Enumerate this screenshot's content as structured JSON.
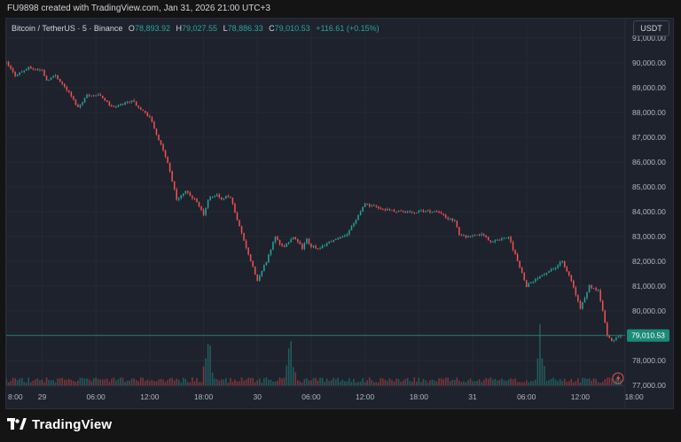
{
  "topbar": {
    "credit": "FU9898 created with TradingView.com, Jan 31, 2026 21:00 UTC+3"
  },
  "legend": {
    "symbol": "Bitcoin / TetherUS · 5 · Binance",
    "open_label": "O",
    "open": "78,893.92",
    "high_label": "H",
    "high": "79,027.55",
    "low_label": "L",
    "low": "78,886.33",
    "close_label": "C",
    "close": "79,010.53",
    "change": "+116.61 (+0.15%)"
  },
  "currency_button": "USDT",
  "branding": {
    "name": "TradingView"
  },
  "colors": {
    "background": "#1e222d",
    "up": "#26a69a",
    "down": "#ef5350",
    "text": "#d1d4dc",
    "last_price_label": "#1b8a7a"
  },
  "chart_data": {
    "type": "candlestick",
    "symbol": "Bitcoin / TetherUS",
    "interval": "5",
    "exchange": "Binance",
    "ylim": [
      77000,
      91500
    ],
    "yticks": [
      "91,000.00",
      "90,000.00",
      "89,000.00",
      "88,000.00",
      "87,000.00",
      "86,000.00",
      "85,000.00",
      "84,000.00",
      "83,000.00",
      "82,000.00",
      "81,000.00",
      "80,000.00",
      "79,000.00",
      "78,000.00",
      "77,000.00"
    ],
    "ytick_values": [
      91000,
      90000,
      89000,
      88000,
      87000,
      86000,
      85000,
      84000,
      83000,
      82000,
      81000,
      80000,
      79000,
      78000,
      77000
    ],
    "x_range": [
      -4.0,
      65.0
    ],
    "xticks": [
      "8:00",
      "29",
      "06:00",
      "12:00",
      "18:00",
      "30",
      "06:00",
      "12:00",
      "18:00",
      "31",
      "06:00",
      "12:00",
      "18:00"
    ],
    "xtick_positions": [
      0,
      4,
      10,
      16,
      22,
      28,
      34,
      40,
      46,
      52,
      58,
      64,
      70
    ],
    "last_price": "79,010.53",
    "last_price_value": 79010.53,
    "path_hours": [
      -4.0,
      -3.0,
      -1.5,
      0.0,
      0.5,
      1.5,
      3.0,
      4.0,
      5.0,
      6.5,
      7.5,
      8.0,
      10.0,
      12.0,
      14.0,
      15.0,
      16.0,
      17.0,
      18.0,
      18.5,
      19.0,
      19.5,
      20.0,
      20.5,
      21.0,
      22.0,
      23.0,
      24.0,
      25.0,
      26.0,
      26.5,
      27.0,
      28.0,
      28.5,
      29.0,
      29.5,
      30.0,
      31.0,
      32.0,
      34.0,
      36.0,
      38.0,
      40.0,
      42.0,
      44.0,
      46.0,
      46.5,
      47.0,
      48.0,
      49.0,
      50.0,
      52.0,
      54.0,
      56.0,
      57.0,
      58.0,
      59.0,
      60.0,
      61.0,
      62.0,
      62.5,
      63.0,
      63.5,
      64.0,
      64.5,
      64.7
    ],
    "path_prices": [
      90000,
      89500,
      89800,
      89700,
      89300,
      89500,
      88800,
      88200,
      88700,
      88700,
      88300,
      88200,
      88500,
      87800,
      86000,
      84500,
      84800,
      84500,
      83900,
      84500,
      84600,
      84700,
      84500,
      84600,
      84600,
      83400,
      82300,
      81200,
      82000,
      83000,
      82700,
      82600,
      83000,
      82800,
      82500,
      82900,
      82600,
      82500,
      82800,
      83100,
      84300,
      84100,
      84000,
      84000,
      84000,
      83600,
      83100,
      83000,
      83000,
      83100,
      82800,
      83000,
      81000,
      81500,
      81700,
      82000,
      81200,
      80100,
      81000,
      80800,
      80000,
      79000,
      78800,
      78900,
      79000,
      79010
    ],
    "volume_spikes_hours": [
      18.5,
      27.7,
      55.6
    ],
    "grid": true,
    "legend_position": "top-left"
  }
}
